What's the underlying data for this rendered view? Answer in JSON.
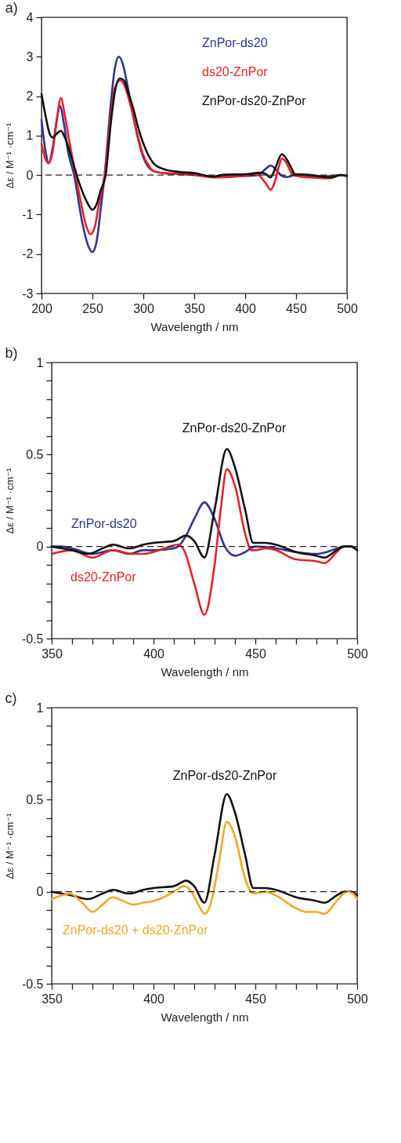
{
  "chart_data": [
    {
      "type": "line",
      "title": "a)",
      "xlabel": "Wavelength / nm",
      "ylabel": "Δε / M⁻¹ ·cm⁻¹",
      "xlim": [
        200,
        500
      ],
      "ylim": [
        -3,
        4
      ],
      "xticks": [
        200,
        250,
        300,
        350,
        400,
        450,
        500
      ],
      "yticks": [
        -3,
        -2,
        -1,
        0,
        1,
        2,
        3,
        4
      ],
      "line_style": "solid",
      "ref_lines": [
        {
          "axis": "y",
          "value": 0,
          "line_style": "dashed",
          "color": "#222222"
        }
      ],
      "series": [
        {
          "name": "ZnPor-ds20",
          "color": "#2e3590",
          "x": [
            200,
            204,
            207,
            211,
            215,
            218,
            222,
            226,
            232,
            240,
            246,
            250,
            254,
            258,
            262,
            268,
            272,
            276,
            280,
            285,
            290,
            295,
            300,
            305,
            310,
            320,
            335,
            350,
            370,
            390,
            410,
            416,
            420,
            425,
            430,
            435,
            440,
            450,
            470,
            485,
            493,
            500
          ],
          "values": [
            1.4,
            0.6,
            0.3,
            0.7,
            1.4,
            1.75,
            1.3,
            0.6,
            0,
            -1.2,
            -1.8,
            -1.95,
            -1.7,
            -0.9,
            0,
            1.8,
            2.7,
            3.0,
            2.8,
            2.2,
            1.5,
            0.9,
            0.45,
            0.2,
            0.1,
            0.05,
            0.03,
            0.01,
            -0.04,
            -0.03,
            -0.01,
            0.06,
            0.15,
            0.24,
            0.15,
            0.0,
            -0.05,
            0.0,
            -0.03,
            -0.03,
            0.0,
            -0.02
          ]
        },
        {
          "name": "ds20-ZnPor",
          "color": "#e8202a",
          "x": [
            200,
            204,
            207,
            211,
            215,
            219,
            223,
            227,
            232,
            238,
            244,
            248,
            252,
            256,
            262,
            268,
            272,
            277,
            281,
            285,
            290,
            295,
            300,
            305,
            310,
            320,
            335,
            350,
            370,
            390,
            412,
            420,
            425,
            430,
            433,
            436,
            440,
            445,
            450,
            470,
            484,
            493,
            500
          ],
          "values": [
            0.8,
            0.4,
            0.3,
            0.6,
            1.4,
            1.95,
            1.5,
            0.9,
            0.2,
            -0.6,
            -1.3,
            -1.5,
            -1.35,
            -0.8,
            0,
            1.5,
            2.2,
            2.4,
            2.3,
            2.0,
            1.5,
            0.95,
            0.5,
            0.25,
            0.1,
            0.05,
            0.03,
            0.0,
            -0.06,
            -0.04,
            0.01,
            -0.2,
            -0.37,
            -0.1,
            0.2,
            0.42,
            0.33,
            0.07,
            -0.02,
            -0.07,
            -0.08,
            0.0,
            -0.02
          ]
        },
        {
          "name": "ZnPor-ds20-ZnPor",
          "color": "#111111",
          "x": [
            200,
            204,
            208,
            211,
            215,
            219,
            223,
            230,
            237,
            244,
            250,
            254,
            258,
            263,
            268,
            272,
            277,
            281,
            285,
            290,
            295,
            300,
            305,
            310,
            320,
            335,
            350,
            368,
            380,
            400,
            416,
            420,
            425,
            430,
            436,
            440,
            445,
            449,
            460,
            484,
            494,
            500
          ],
          "values": [
            2.05,
            1.5,
            1.05,
            0.95,
            1.05,
            1.12,
            0.95,
            0.4,
            -0.2,
            -0.65,
            -0.88,
            -0.75,
            -0.4,
            0,
            1.3,
            2.1,
            2.45,
            2.4,
            2.1,
            1.7,
            1.2,
            0.8,
            0.5,
            0.3,
            0.15,
            0.08,
            0.05,
            -0.04,
            0.01,
            0.02,
            0.06,
            0.03,
            -0.06,
            0.2,
            0.53,
            0.43,
            0.2,
            0.02,
            0.01,
            -0.06,
            0.0,
            -0.02
          ]
        }
      ]
    },
    {
      "type": "line",
      "title": "b)",
      "xlabel": "Wavelength / nm",
      "ylabel": "Δε / M⁻¹ ·cm⁻¹",
      "xlim": [
        350,
        500
      ],
      "ylim": [
        -0.5,
        1
      ],
      "xticks": [
        350,
        {
          "value": 360,
          "label": null
        },
        {
          "value": 370,
          "label": null
        },
        {
          "value": 380,
          "label": null
        },
        {
          "value": 390,
          "label": null
        },
        400,
        {
          "value": 410,
          "label": null
        },
        {
          "value": 420,
          "label": null
        },
        {
          "value": 430,
          "label": null
        },
        {
          "value": 440,
          "label": null
        },
        450,
        {
          "value": 460,
          "label": null
        },
        {
          "value": 470,
          "label": null
        },
        {
          "value": 480,
          "label": null
        },
        {
          "value": 490,
          "label": null
        },
        500
      ],
      "yticks": [
        -0.5,
        {
          "value": -0.4,
          "label": null
        },
        {
          "value": -0.3,
          "label": null
        },
        {
          "value": -0.2,
          "label": null
        },
        {
          "value": -0.1,
          "label": null
        },
        0,
        {
          "value": 0.1,
          "label": null
        },
        {
          "value": 0.2,
          "label": null
        },
        {
          "value": 0.3,
          "label": null
        },
        {
          "value": 0.4,
          "label": null
        },
        0.5,
        {
          "value": 0.6,
          "label": null
        },
        {
          "value": 0.7,
          "label": null
        },
        {
          "value": 0.8,
          "label": null
        },
        {
          "value": 0.9,
          "label": null
        },
        1
      ],
      "line_style": "solid",
      "ref_lines": [
        {
          "axis": "y",
          "value": 0,
          "line_style": "dashed",
          "color": "#222222"
        }
      ],
      "series": [
        {
          "name": "ZnPor-ds20",
          "color": "#2e3590",
          "x": [
            350,
            355,
            360,
            370,
            380,
            388,
            395,
            400,
            410,
            413,
            416,
            420,
            425,
            430,
            435,
            440,
            445,
            450,
            460,
            470,
            480,
            485,
            490,
            493,
            497,
            500
          ],
          "values": [
            0.0,
            0.0,
            -0.01,
            -0.04,
            -0.02,
            -0.04,
            -0.02,
            -0.02,
            -0.01,
            0.01,
            0.06,
            0.15,
            0.24,
            0.15,
            0.0,
            -0.05,
            -0.03,
            0.0,
            -0.01,
            -0.03,
            -0.04,
            -0.03,
            -0.01,
            0.0,
            0.0,
            -0.02
          ]
        },
        {
          "name": "ds20-ZnPor",
          "color": "#e8202a",
          "x": [
            350,
            360,
            370,
            380,
            390,
            395,
            400,
            408,
            412,
            415,
            420,
            425,
            430,
            433,
            436,
            440,
            445,
            448,
            450,
            455,
            460,
            470,
            480,
            484,
            490,
            493,
            497,
            500
          ],
          "values": [
            -0.04,
            -0.02,
            -0.06,
            -0.02,
            -0.04,
            -0.04,
            -0.03,
            0.0,
            0.01,
            -0.02,
            -0.2,
            -0.37,
            -0.1,
            0.2,
            0.42,
            0.33,
            0.07,
            -0.02,
            -0.02,
            -0.01,
            -0.02,
            -0.07,
            -0.08,
            -0.09,
            -0.03,
            0.0,
            0.0,
            -0.02
          ]
        },
        {
          "name": "ZnPor-ds20-ZnPor",
          "color": "#111111",
          "x": [
            350,
            360,
            368,
            375,
            380,
            388,
            395,
            400,
            410,
            416,
            420,
            425,
            430,
            436,
            440,
            445,
            449,
            455,
            460,
            470,
            480,
            484,
            490,
            494,
            497,
            500
          ],
          "values": [
            0.0,
            -0.02,
            -0.04,
            -0.01,
            0.01,
            -0.01,
            0.01,
            0.02,
            0.03,
            0.06,
            0.03,
            -0.06,
            0.2,
            0.53,
            0.43,
            0.2,
            0.02,
            0.02,
            0.01,
            -0.03,
            -0.05,
            -0.06,
            -0.02,
            0.0,
            0.0,
            -0.02
          ]
        }
      ]
    },
    {
      "type": "line",
      "title": "c)",
      "xlabel": "Wavelength / nm",
      "ylabel": "Δε / M⁻¹ ·cm⁻¹",
      "xlim": [
        350,
        500
      ],
      "ylim": [
        -0.5,
        1
      ],
      "xticks": [
        350,
        {
          "value": 360,
          "label": null
        },
        {
          "value": 370,
          "label": null
        },
        {
          "value": 380,
          "label": null
        },
        {
          "value": 390,
          "label": null
        },
        400,
        {
          "value": 410,
          "label": null
        },
        {
          "value": 420,
          "label": null
        },
        {
          "value": 430,
          "label": null
        },
        {
          "value": 440,
          "label": null
        },
        450,
        {
          "value": 460,
          "label": null
        },
        {
          "value": 470,
          "label": null
        },
        {
          "value": 480,
          "label": null
        },
        {
          "value": 490,
          "label": null
        },
        500
      ],
      "yticks": [
        -0.5,
        {
          "value": -0.4,
          "label": null
        },
        {
          "value": -0.3,
          "label": null
        },
        {
          "value": -0.2,
          "label": null
        },
        {
          "value": -0.1,
          "label": null
        },
        0,
        {
          "value": 0.1,
          "label": null
        },
        {
          "value": 0.2,
          "label": null
        },
        {
          "value": 0.3,
          "label": null
        },
        {
          "value": 0.4,
          "label": null
        },
        0.5,
        {
          "value": 0.6,
          "label": null
        },
        {
          "value": 0.7,
          "label": null
        },
        {
          "value": 0.8,
          "label": null
        },
        {
          "value": 0.9,
          "label": null
        },
        1
      ],
      "line_style": "solid",
      "ref_lines": [
        {
          "axis": "y",
          "value": 0,
          "line_style": "dashed",
          "color": "#222222"
        }
      ],
      "series": [
        {
          "name": "ZnPor-ds20-ZnPor",
          "color": "#111111",
          "x": [
            350,
            360,
            368,
            375,
            380,
            388,
            395,
            400,
            410,
            416,
            420,
            425,
            430,
            436,
            440,
            445,
            449,
            455,
            460,
            470,
            480,
            484,
            490,
            494,
            497,
            500
          ],
          "values": [
            0.0,
            -0.02,
            -0.04,
            -0.01,
            0.01,
            -0.01,
            0.01,
            0.02,
            0.03,
            0.06,
            0.03,
            -0.06,
            0.2,
            0.53,
            0.43,
            0.2,
            0.02,
            0.02,
            0.01,
            -0.03,
            -0.05,
            -0.06,
            -0.02,
            0.0,
            0.0,
            -0.02
          ]
        },
        {
          "name": "ZnPor-ds20 + ds20-ZnPor",
          "color": "#f5a623",
          "x": [
            350,
            355,
            359,
            365,
            370,
            375,
            380,
            385,
            390,
            395,
            400,
            405,
            410,
            415,
            418,
            422,
            425,
            428,
            432,
            436,
            440,
            445,
            449,
            455,
            460,
            470,
            475,
            480,
            484,
            490,
            495,
            498,
            500
          ],
          "values": [
            -0.04,
            -0.02,
            -0.01,
            -0.06,
            -0.11,
            -0.07,
            -0.03,
            -0.05,
            -0.07,
            -0.06,
            -0.05,
            -0.03,
            0.0,
            0.03,
            0.01,
            -0.07,
            -0.12,
            -0.07,
            0.15,
            0.38,
            0.3,
            0.07,
            -0.01,
            0.0,
            -0.02,
            -0.09,
            -0.11,
            -0.11,
            -0.12,
            -0.05,
            0.0,
            -0.01,
            -0.04
          ]
        }
      ]
    }
  ]
}
